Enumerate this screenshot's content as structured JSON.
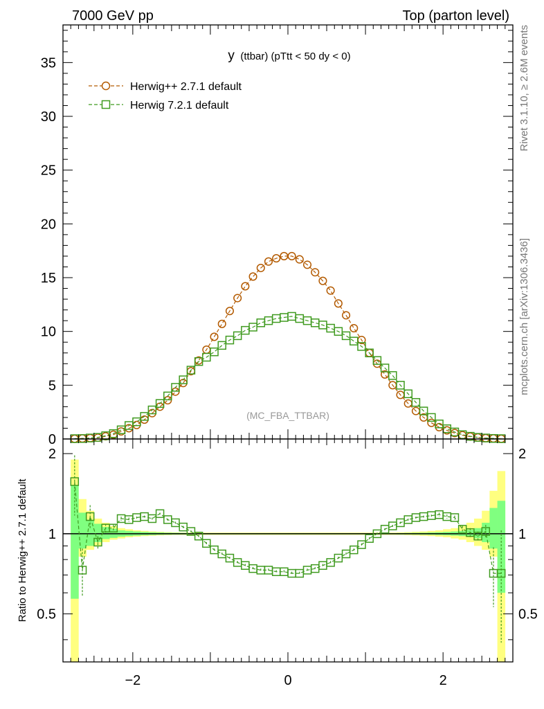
{
  "header": {
    "left": "7000 GeV pp",
    "right": "Top (parton level)"
  },
  "side_labels": {
    "rivet": "Rivet 3.1.10, ≥ 2.6M events",
    "mcplots": "mcplots.cern.ch [arXiv:1306.3436]"
  },
  "colors": {
    "herwig_pp": "#b35a00",
    "herwig7": "#3f9a1f",
    "band_outer": "#ffff80",
    "band_inner": "#80ff80",
    "axis": "#000000",
    "watermark": "#999999",
    "side_text": "#777777"
  },
  "chart_data": [
    {
      "type": "line",
      "title": "y (ttbar) (pTtt < 50 dy < 0)",
      "title_main": "y",
      "title_sub": "(ttbar) (pTtt < 50 dy < 0)",
      "watermark": "(MC_FBA_TTBAR)",
      "xlim": [
        -2.9,
        2.9
      ],
      "ylim": [
        0,
        38.5
      ],
      "yticks": [
        0,
        5,
        10,
        15,
        20,
        25,
        30,
        35
      ],
      "ytick_labels": [
        "0",
        "5",
        "10",
        "15",
        "20",
        "25",
        "30",
        "35"
      ],
      "legend_position": "top-left",
      "x": [
        -2.75,
        -2.65,
        -2.55,
        -2.45,
        -2.35,
        -2.25,
        -2.15,
        -2.05,
        -1.95,
        -1.85,
        -1.75,
        -1.65,
        -1.55,
        -1.45,
        -1.35,
        -1.25,
        -1.15,
        -1.05,
        -0.95,
        -0.85,
        -0.75,
        -0.65,
        -0.55,
        -0.45,
        -0.35,
        -0.25,
        -0.15,
        -0.05,
        0.05,
        0.15,
        0.25,
        0.35,
        0.45,
        0.55,
        0.65,
        0.75,
        0.85,
        0.95,
        1.05,
        1.15,
        1.25,
        1.35,
        1.45,
        1.55,
        1.65,
        1.75,
        1.85,
        1.95,
        2.05,
        2.15,
        2.25,
        2.35,
        2.45,
        2.55,
        2.65,
        2.75
      ],
      "series": [
        {
          "name": "Herwig++ 2.7.1 default",
          "marker": "circle",
          "values": [
            0.02,
            0.05,
            0.08,
            0.12,
            0.25,
            0.4,
            0.7,
            1.0,
            1.3,
            1.8,
            2.4,
            3.0,
            3.6,
            4.4,
            5.2,
            6.3,
            7.3,
            8.3,
            9.5,
            10.7,
            11.9,
            13.1,
            14.2,
            15.1,
            15.9,
            16.5,
            16.8,
            17.0,
            17.0,
            16.7,
            16.2,
            15.5,
            14.7,
            13.8,
            12.6,
            11.5,
            10.3,
            9.2,
            8.0,
            7.0,
            6.0,
            5.0,
            4.1,
            3.3,
            2.6,
            2.0,
            1.5,
            1.1,
            0.8,
            0.55,
            0.35,
            0.22,
            0.14,
            0.08,
            0.05,
            0.02
          ]
        },
        {
          "name": "Herwig 7.2.1 default",
          "marker": "square",
          "values": [
            0.03,
            0.04,
            0.09,
            0.15,
            0.3,
            0.5,
            0.85,
            1.25,
            1.6,
            2.1,
            2.7,
            3.3,
            4.0,
            4.8,
            5.5,
            6.4,
            7.2,
            7.6,
            8.1,
            8.7,
            9.2,
            9.6,
            10.1,
            10.4,
            10.8,
            11.0,
            11.2,
            11.3,
            11.4,
            11.2,
            11.0,
            10.8,
            10.6,
            10.3,
            10.0,
            9.6,
            9.1,
            8.6,
            8.0,
            7.3,
            6.6,
            5.9,
            5.0,
            4.2,
            3.4,
            2.6,
            2.0,
            1.4,
            0.95,
            0.65,
            0.4,
            0.25,
            0.15,
            0.09,
            0.05,
            0.03
          ]
        }
      ]
    },
    {
      "type": "line",
      "ylabel": "Ratio to Herwig++ 2.7.1 default",
      "xlim": [
        -2.9,
        2.9
      ],
      "ylim": [
        0.33,
        2.27
      ],
      "yticks": [
        0.5,
        1,
        2
      ],
      "ytick_labels": [
        "0.5",
        "1",
        "2"
      ],
      "xticks": [
        -2,
        0,
        2
      ],
      "xtick_labels": [
        "−2",
        "0",
        "2"
      ],
      "reference_line": 1,
      "x": [
        -2.75,
        -2.65,
        -2.55,
        -2.45,
        -2.35,
        -2.25,
        -2.15,
        -2.05,
        -1.95,
        -1.85,
        -1.75,
        -1.65,
        -1.55,
        -1.45,
        -1.35,
        -1.25,
        -1.15,
        -1.05,
        -0.95,
        -0.85,
        -0.75,
        -0.65,
        -0.55,
        -0.45,
        -0.35,
        -0.25,
        -0.15,
        -0.05,
        0.05,
        0.15,
        0.25,
        0.35,
        0.45,
        0.55,
        0.65,
        0.75,
        0.85,
        0.95,
        1.05,
        1.15,
        1.25,
        1.35,
        1.45,
        1.55,
        1.65,
        1.75,
        1.85,
        1.95,
        2.05,
        2.15,
        2.25,
        2.35,
        2.45,
        2.55,
        2.65,
        2.75
      ],
      "band_outer": [
        [
          0.33,
          1.9
        ],
        [
          0.82,
          1.35
        ],
        [
          0.87,
          1.22
        ],
        [
          0.9,
          1.14
        ],
        [
          0.93,
          1.1
        ],
        [
          0.95,
          1.07
        ],
        [
          0.96,
          1.05
        ],
        [
          0.97,
          1.04
        ],
        [
          0.975,
          1.03
        ],
        [
          0.98,
          1.025
        ],
        [
          0.983,
          1.02
        ],
        [
          0.986,
          1.017
        ],
        [
          0.988,
          1.014
        ],
        [
          0.99,
          1.012
        ],
        [
          0.99,
          1.01
        ],
        [
          0.99,
          1.01
        ],
        [
          0.99,
          1.01
        ],
        [
          0.99,
          1.01
        ],
        [
          0.99,
          1.01
        ],
        [
          0.99,
          1.01
        ],
        [
          0.99,
          1.01
        ],
        [
          0.99,
          1.01
        ],
        [
          0.99,
          1.01
        ],
        [
          0.99,
          1.01
        ],
        [
          0.99,
          1.01
        ],
        [
          0.99,
          1.01
        ],
        [
          0.99,
          1.01
        ],
        [
          0.99,
          1.01
        ],
        [
          0.99,
          1.01
        ],
        [
          0.99,
          1.01
        ],
        [
          0.99,
          1.01
        ],
        [
          0.99,
          1.01
        ],
        [
          0.99,
          1.01
        ],
        [
          0.99,
          1.01
        ],
        [
          0.99,
          1.01
        ],
        [
          0.99,
          1.01
        ],
        [
          0.99,
          1.01
        ],
        [
          0.99,
          1.01
        ],
        [
          0.99,
          1.01
        ],
        [
          0.99,
          1.01
        ],
        [
          0.99,
          1.01
        ],
        [
          0.99,
          1.01
        ],
        [
          0.99,
          1.012
        ],
        [
          0.988,
          1.014
        ],
        [
          0.986,
          1.017
        ],
        [
          0.983,
          1.02
        ],
        [
          0.98,
          1.025
        ],
        [
          0.975,
          1.03
        ],
        [
          0.97,
          1.04
        ],
        [
          0.96,
          1.05
        ],
        [
          0.95,
          1.07
        ],
        [
          0.93,
          1.1
        ],
        [
          0.9,
          1.14
        ],
        [
          0.87,
          1.22
        ],
        [
          0.82,
          1.45
        ],
        [
          0.33,
          1.72
        ]
      ],
      "band_inner": [
        [
          0.57,
          1.52
        ],
        [
          0.88,
          1.2
        ],
        [
          0.9,
          1.13
        ],
        [
          0.93,
          1.09
        ],
        [
          0.955,
          1.06
        ],
        [
          0.965,
          1.045
        ],
        [
          0.975,
          1.03
        ],
        [
          0.98,
          1.025
        ],
        [
          0.984,
          1.02
        ],
        [
          0.987,
          1.016
        ],
        [
          0.989,
          1.013
        ],
        [
          0.991,
          1.011
        ],
        [
          0.992,
          1.009
        ],
        [
          0.993,
          1.008
        ],
        [
          0.994,
          1.007
        ],
        [
          0.994,
          1.006
        ],
        [
          0.995,
          1.006
        ],
        [
          0.995,
          1.005
        ],
        [
          0.995,
          1.005
        ],
        [
          0.995,
          1.005
        ],
        [
          0.995,
          1.005
        ],
        [
          0.995,
          1.005
        ],
        [
          0.995,
          1.005
        ],
        [
          0.995,
          1.005
        ],
        [
          0.995,
          1.005
        ],
        [
          0.995,
          1.005
        ],
        [
          0.995,
          1.005
        ],
        [
          0.995,
          1.005
        ],
        [
          0.995,
          1.005
        ],
        [
          0.995,
          1.005
        ],
        [
          0.995,
          1.005
        ],
        [
          0.995,
          1.005
        ],
        [
          0.995,
          1.005
        ],
        [
          0.995,
          1.005
        ],
        [
          0.995,
          1.005
        ],
        [
          0.995,
          1.005
        ],
        [
          0.995,
          1.005
        ],
        [
          0.995,
          1.005
        ],
        [
          0.995,
          1.005
        ],
        [
          0.995,
          1.005
        ],
        [
          0.995,
          1.005
        ],
        [
          0.995,
          1.005
        ],
        [
          0.994,
          1.006
        ],
        [
          0.994,
          1.007
        ],
        [
          0.993,
          1.008
        ],
        [
          0.992,
          1.009
        ],
        [
          0.991,
          1.011
        ],
        [
          0.989,
          1.013
        ],
        [
          0.987,
          1.016
        ],
        [
          0.984,
          1.02
        ],
        [
          0.98,
          1.025
        ],
        [
          0.975,
          1.035
        ],
        [
          0.96,
          1.05
        ],
        [
          0.93,
          1.1
        ],
        [
          0.88,
          1.25
        ],
        [
          0.6,
          1.33
        ]
      ],
      "series": [
        {
          "name": "Herwig 7.2.1 default",
          "marker": "square",
          "values": [
            1.57,
            0.73,
            1.16,
            0.93,
            1.05,
            1.05,
            1.14,
            1.13,
            1.15,
            1.16,
            1.14,
            1.19,
            1.13,
            1.1,
            1.06,
            1.02,
            0.98,
            0.92,
            0.87,
            0.84,
            0.81,
            0.78,
            0.76,
            0.74,
            0.73,
            0.73,
            0.72,
            0.72,
            0.71,
            0.71,
            0.73,
            0.74,
            0.76,
            0.78,
            0.81,
            0.84,
            0.87,
            0.91,
            0.96,
            1.0,
            1.04,
            1.07,
            1.1,
            1.13,
            1.15,
            1.16,
            1.17,
            1.18,
            1.16,
            1.15,
            1.04,
            1.01,
            0.98,
            1.02,
            0.71,
            0.71
          ],
          "err": [
            0.4,
            0.15,
            0.12,
            0.05,
            0.04,
            0.03,
            0.02,
            0.02,
            0.01,
            0.01,
            0.01,
            0.01,
            0.01,
            0.01,
            0.01,
            0.01,
            0.01,
            0.01,
            0.01,
            0.01,
            0.01,
            0.01,
            0.01,
            0.01,
            0.01,
            0.01,
            0.01,
            0.01,
            0.01,
            0.01,
            0.01,
            0.01,
            0.01,
            0.01,
            0.01,
            0.01,
            0.01,
            0.01,
            0.01,
            0.01,
            0.01,
            0.01,
            0.01,
            0.01,
            0.01,
            0.01,
            0.01,
            0.02,
            0.02,
            0.02,
            0.03,
            0.04,
            0.04,
            0.06,
            0.18,
            0.32
          ]
        }
      ]
    }
  ]
}
